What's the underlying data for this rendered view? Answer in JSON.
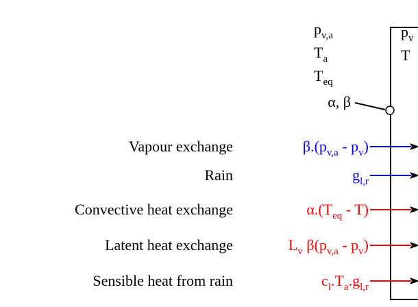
{
  "top_labels": [
    [
      "p",
      "v,a"
    ],
    [
      "T",
      "a"
    ],
    [
      "T",
      "eq"
    ]
  ],
  "coupling": "α, β",
  "box_labels": [
    [
      "p",
      "v"
    ],
    [
      "T"
    ]
  ],
  "fluxes": [
    {
      "name": "Vapour exchange",
      "expr": [
        "β.(p",
        "v,a",
        " - p",
        "v",
        ")"
      ],
      "color": "#0000ff"
    },
    {
      "name": "Rain",
      "expr": [
        "g",
        "l,r"
      ],
      "color": "#0000ff"
    },
    {
      "name": "Convective heat exchange",
      "expr": [
        "α.(T",
        "eq",
        " - T)"
      ],
      "color": "#ff0000"
    },
    {
      "name": "Latent heat exchange",
      "expr": [
        "L",
        "v",
        " β(p",
        "v,a",
        " - p",
        "v",
        ")"
      ],
      "color": "#ff0000"
    },
    {
      "name": "Sensible heat from rain",
      "expr": [
        "c",
        "l",
        ".T",
        "a",
        ".g",
        "l,r"
      ],
      "color": "#ff0000"
    }
  ]
}
